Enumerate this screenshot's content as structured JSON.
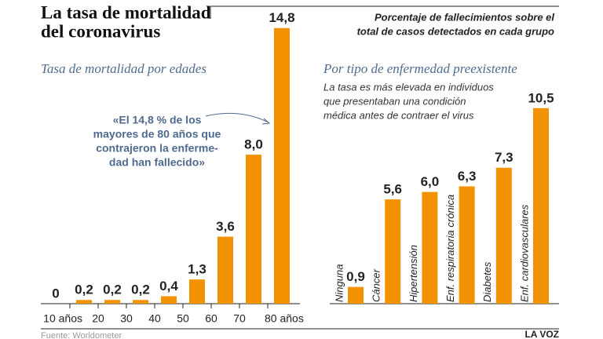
{
  "header": {
    "title": [
      "La tasa de mortalidad",
      "del coronavirus"
    ],
    "subtitle": [
      "Porcentaje de fallecimientos sobre el",
      "total de casos detectados en cada grupo"
    ]
  },
  "chart_data": [
    {
      "type": "bar",
      "subtitle": "Tasa de mortalidad por edades",
      "categories": [
        null,
        null,
        null,
        null,
        null,
        null,
        null,
        null,
        null
      ],
      "x_tick_labels": [
        "10 años",
        "20",
        "30",
        "40",
        "50",
        "60",
        "70",
        "80 años"
      ],
      "values": [
        0,
        0.2,
        0.2,
        0.2,
        0.4,
        1.3,
        3.6,
        8.0,
        14.8
      ],
      "value_labels": [
        "0",
        "0,2",
        "0,2",
        "0,2",
        "0,4",
        "1,3",
        "3,6",
        "8,0",
        "14,8"
      ],
      "color": "#f39200",
      "ylim": [
        0,
        15
      ],
      "annotation": [
        "«El 14,8 % de los",
        "mayores de 80 años que",
        "contrajeron la enferme-",
        "dad han fallecido»"
      ]
    },
    {
      "type": "bar",
      "subtitle": "Por tipo de enfermedad preexistente",
      "note": [
        "La tasa es más elevada en individuos",
        "que presentaban una condición",
        "médica antes de contraer el virus"
      ],
      "categories": [
        "Ninguna",
        "Cáncer",
        "Hipertensión",
        "Enf. respiratoria crónica",
        "Diabetes",
        "Enf. cardiovasculares"
      ],
      "values": [
        0.9,
        5.6,
        6.0,
        6.3,
        7.3,
        10.5
      ],
      "value_labels": [
        "0,9",
        "5,6",
        "6,0",
        "6,3",
        "7,3",
        "10,5"
      ],
      "color": "#f39200",
      "ylim": [
        0,
        15
      ]
    }
  ],
  "footer": {
    "source": "Fuente: Worldometer",
    "brand": "LA VOZ"
  }
}
